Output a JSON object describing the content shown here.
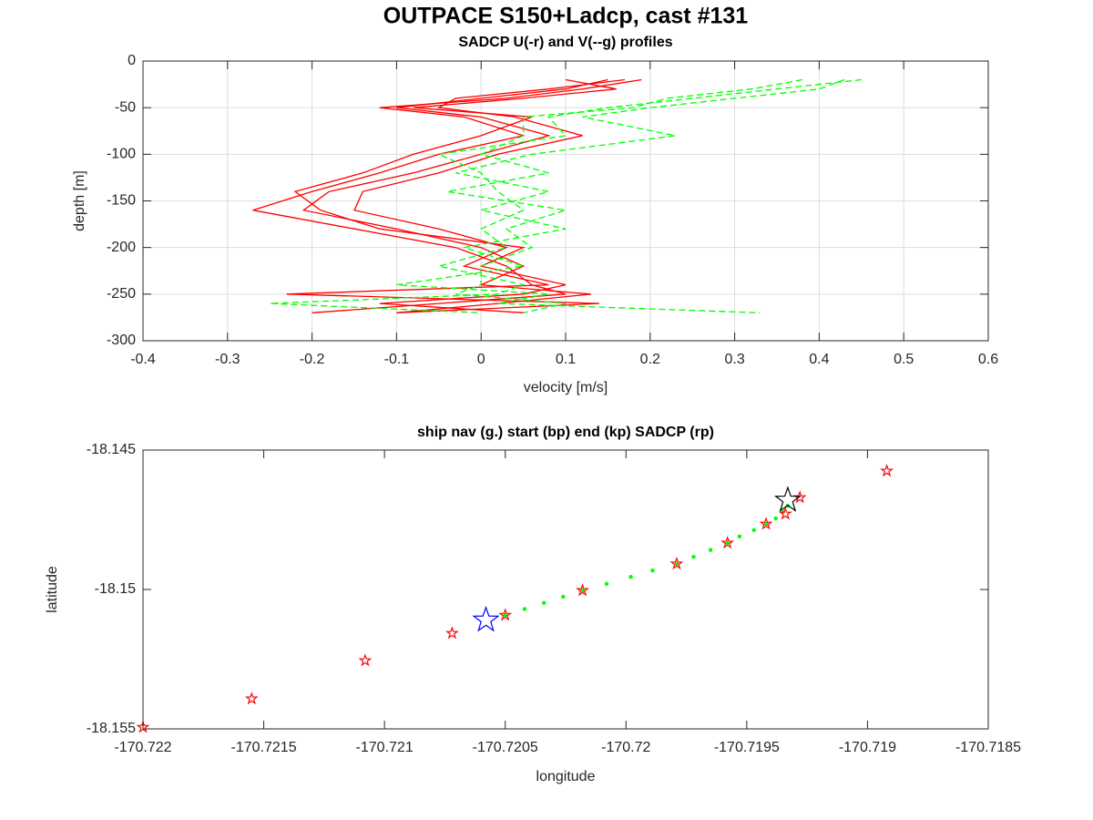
{
  "title": "OUTPACE S150+Ladcp, cast #131",
  "chart_data": [
    {
      "type": "line",
      "title": "SADCP U(-r) and V(--g) profiles",
      "xlabel": "velocity [m/s]",
      "ylabel": "depth [m]",
      "xlim": [
        -0.4,
        0.6
      ],
      "xticks": [
        -0.4,
        -0.3,
        -0.2,
        -0.1,
        0,
        0.1,
        0.2,
        0.3,
        0.4,
        0.5,
        0.6
      ],
      "ylim": [
        -300,
        0
      ],
      "yticks": [
        -300,
        -250,
        -200,
        -150,
        -100,
        -50,
        0
      ],
      "grid": true,
      "y": [
        -20,
        -30,
        -40,
        -50,
        -60,
        -80,
        -100,
        -120,
        -140,
        -160,
        -180,
        -200,
        -220,
        -240,
        -250,
        -260,
        -270
      ],
      "series": [
        {
          "color": "#ff0000",
          "linestyle": "solid",
          "x": [
            0.19,
            0.12,
            0.03,
            -0.12,
            -0.02,
            0.05,
            -0.05,
            -0.12,
            -0.2,
            -0.27,
            -0.15,
            -0.03,
            0.03,
            0.06,
            0.1,
            -0.05,
            -0.2
          ]
        },
        {
          "color": "#ff0000",
          "linestyle": "solid",
          "x": [
            0.15,
            0.1,
            0.0,
            -0.1,
            0.0,
            0.08,
            0.0,
            -0.08,
            -0.18,
            -0.21,
            -0.1,
            0.0,
            0.05,
            0.0,
            0.13,
            0.02,
            -0.1
          ]
        },
        {
          "color": "#ff0000",
          "linestyle": "solid",
          "x": [
            0.17,
            0.08,
            -0.03,
            -0.05,
            0.04,
            0.12,
            0.02,
            -0.05,
            -0.14,
            -0.15,
            -0.05,
            0.03,
            -0.02,
            0.08,
            -0.23,
            0.14,
            -0.1
          ]
        },
        {
          "color": "#ff0000",
          "linestyle": "solid",
          "x": [
            0.1,
            0.16,
            0.05,
            -0.08,
            0.06,
            0.0,
            -0.08,
            -0.14,
            -0.22,
            -0.19,
            -0.12,
            0.05,
            0.0,
            0.1,
            0.05,
            -0.12,
            0.05
          ]
        },
        {
          "color": "#00ff00",
          "linestyle": "dashed",
          "x": [
            0.45,
            0.35,
            0.25,
            0.15,
            0.08,
            0.1,
            -0.05,
            0.0,
            0.02,
            0.05,
            0.0,
            0.03,
            -0.05,
            0.05,
            0.02,
            -0.25,
            0.0
          ]
        },
        {
          "color": "#00ff00",
          "linestyle": "dashed",
          "x": [
            0.43,
            0.4,
            0.3,
            0.2,
            0.12,
            0.23,
            0.06,
            -0.03,
            0.08,
            0.0,
            0.1,
            -0.02,
            0.05,
            -0.1,
            0.08,
            0.02,
            0.33
          ]
        },
        {
          "color": "#00ff00",
          "linestyle": "dashed",
          "x": [
            0.38,
            0.32,
            0.22,
            0.18,
            0.05,
            0.05,
            0.0,
            0.08,
            -0.04,
            0.1,
            0.03,
            0.06,
            0.0,
            0.0,
            -0.03,
            0.1,
            0.05
          ]
        }
      ]
    },
    {
      "type": "scatter",
      "title": "ship nav (g.) start (bp) end (kp) SADCP (rp)",
      "xlabel": "longitude",
      "ylabel": "latitude",
      "xlim": [
        -170.722,
        -170.7185
      ],
      "xticks": [
        -170.722,
        -170.7215,
        -170.721,
        -170.7205,
        -170.72,
        -170.7195,
        -170.719,
        -170.7185
      ],
      "ylim": [
        -18.155,
        -18.145
      ],
      "yticks": [
        -18.155,
        -18.15,
        -18.145
      ],
      "grid": false,
      "series": [
        {
          "color": "#00ff00",
          "marker": "dot",
          "size": 2.2,
          "x": [
            -170.7205,
            -170.72042,
            -170.72034,
            -170.72026,
            -170.72018,
            -170.72008,
            -170.71998,
            -170.71989,
            -170.71979,
            -170.71972,
            -170.71965,
            -170.71958,
            -170.71953,
            -170.71947,
            -170.71942,
            -170.71938,
            -170.71935,
            -170.71933
          ],
          "values": [
            -18.15092,
            -18.1507,
            -18.15048,
            -18.15026,
            -18.15003,
            -18.1498,
            -18.14955,
            -18.14932,
            -18.14908,
            -18.14883,
            -18.14858,
            -18.14833,
            -18.1481,
            -18.14787,
            -18.14765,
            -18.14745,
            -18.14722,
            -18.147
          ]
        },
        {
          "color": "#ff0000",
          "marker": "star",
          "size": 6,
          "x": [
            -170.722,
            -170.72155,
            -170.72108,
            -170.72072,
            -170.7205,
            -170.72018,
            -170.71979,
            -170.71958,
            -170.71942,
            -170.71934,
            -170.71928,
            -170.71892
          ],
          "values": [
            -18.15494,
            -18.15392,
            -18.15255,
            -18.15157,
            -18.15092,
            -18.15003,
            -18.14908,
            -18.14833,
            -18.14765,
            -18.14729,
            -18.1467,
            -18.14575
          ]
        },
        {
          "color": "#0000ff",
          "marker": "star",
          "size": 14,
          "x": [
            -170.72058
          ],
          "values": [
            -18.1511
          ]
        },
        {
          "color": "#000000",
          "marker": "star",
          "size": 14,
          "x": [
            -170.71933
          ],
          "values": [
            -18.1468
          ]
        }
      ]
    }
  ]
}
